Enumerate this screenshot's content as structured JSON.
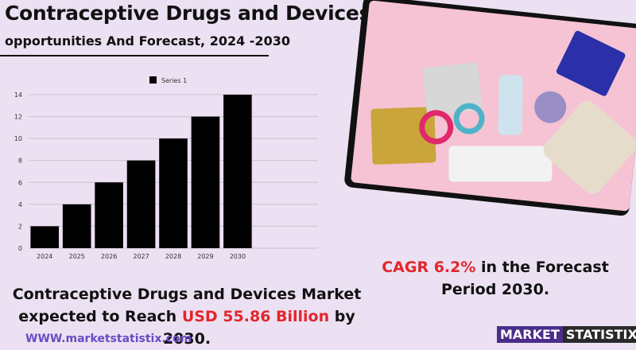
{
  "header": {
    "title": "Contraceptive Drugs and Devices Market",
    "subtitle": "opportunities And Forecast, 2024 -2030"
  },
  "cagr": {
    "prefix": "CAGR  6.2%",
    "middle": "  in the  Forecast",
    "line2": "Period  2030."
  },
  "market": {
    "line1": "Contraceptive Drugs and Devices Market",
    "line2_prefix": "expected to Reach ",
    "value": "USD  55.86 Billion",
    "line2_suffix": " by 2030."
  },
  "footer": {
    "website": "WWW.marketstatistix.com",
    "logo_a": "MARKET",
    "logo_b": "STATISTIX"
  },
  "colors": {
    "bar": "#000000",
    "accent_red": "#e3262b",
    "background": "#ebe1f2"
  },
  "chart_data": {
    "type": "bar",
    "categories": [
      "2024",
      "2025",
      "2026",
      "2027",
      "2028",
      "2029",
      "2030"
    ],
    "series": [
      {
        "name": "Series 1",
        "values": [
          2,
          4,
          6,
          8,
          10,
          12,
          14
        ]
      }
    ],
    "yticks": [
      0,
      2,
      4,
      6,
      8,
      10,
      12,
      14
    ],
    "ylim": [
      0,
      14
    ],
    "grid": true,
    "legend": "top-center"
  }
}
